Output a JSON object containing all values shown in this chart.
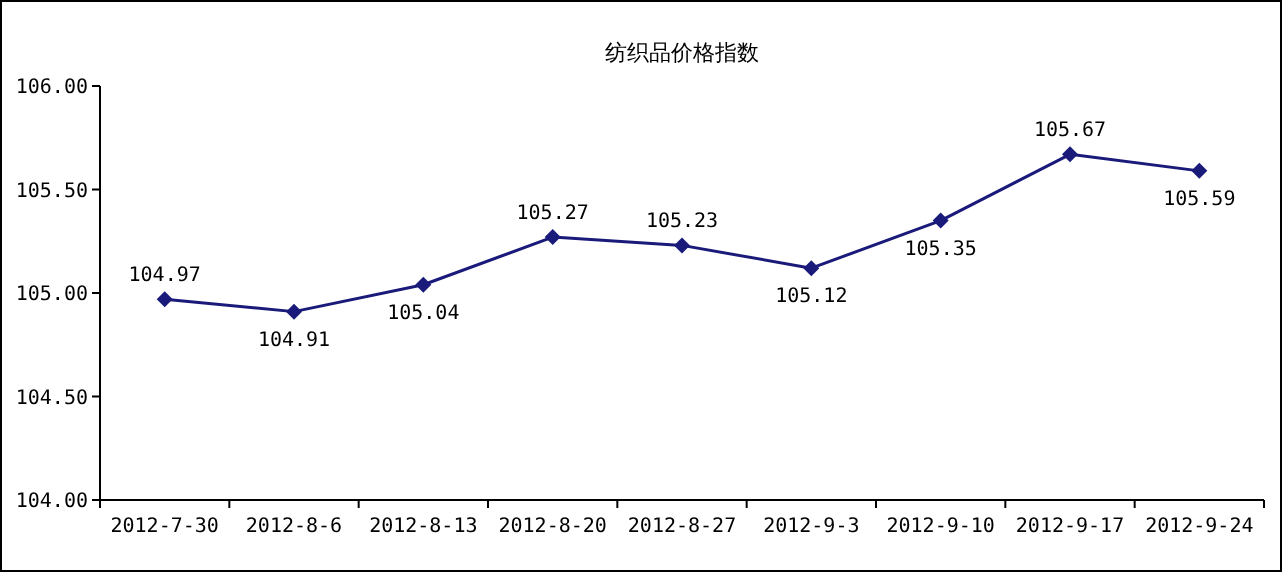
{
  "chart_data": {
    "type": "line",
    "title": "纺织品价格指数",
    "categories": [
      "2012-7-30",
      "2012-8-6",
      "2012-8-13",
      "2012-8-20",
      "2012-8-27",
      "2012-9-3",
      "2012-9-10",
      "2012-9-17",
      "2012-9-24"
    ],
    "values": [
      104.97,
      104.91,
      105.04,
      105.27,
      105.23,
      105.12,
      105.35,
      105.67,
      105.59
    ],
    "color": "#1a1a7a",
    "marker": "diamond",
    "line_style": "solid",
    "data_labels": true,
    "grid": false,
    "legend": false,
    "ylim": [
      104,
      106
    ],
    "yticks": [
      {
        "value": 104,
        "label": "104.00"
      },
      {
        "value": 104.5,
        "label": "104.50"
      },
      {
        "value": 105,
        "label": "105.00"
      },
      {
        "value": 105.5,
        "label": "105.50"
      },
      {
        "value": 106,
        "label": "106.00"
      }
    ]
  }
}
